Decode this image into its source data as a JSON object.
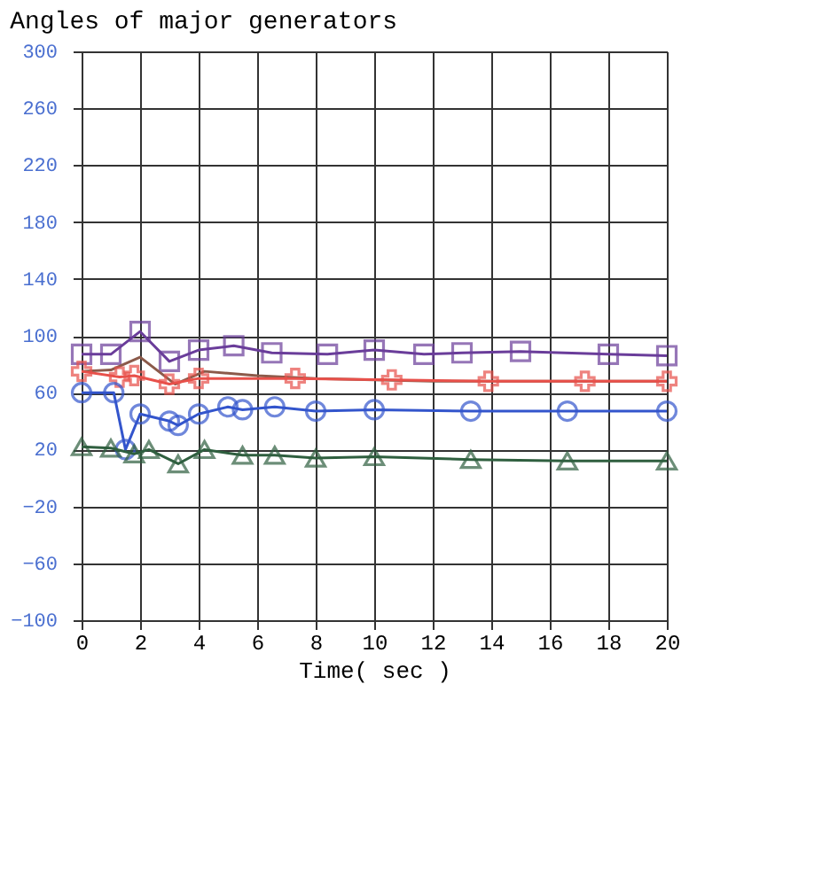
{
  "chart_data": {
    "type": "line",
    "title": "Angles of major generators",
    "xlabel": "Time( sec )",
    "xlim": [
      0,
      20
    ],
    "xticks": [
      0,
      2,
      4,
      6,
      8,
      10,
      12,
      14,
      16,
      18,
      20
    ],
    "ylim": [
      -100,
      300
    ],
    "yticks": [
      -100,
      -60,
      -20,
      20,
      60,
      100,
      140,
      180,
      220,
      260,
      300
    ],
    "grid": true,
    "line_style": "solid",
    "series": [
      {
        "color": "#6a3d9a",
        "marker": "square",
        "x": [
          0,
          1,
          2,
          3,
          4,
          5.2,
          6.5,
          8.4,
          10,
          11.7,
          13,
          15,
          18,
          20
        ],
        "values": [
          87,
          87,
          103,
          82,
          90,
          93,
          88,
          87,
          90,
          87,
          88,
          89,
          87,
          86
        ]
      },
      {
        "color": "#8b5a4a",
        "marker": "none",
        "x": [
          0,
          1,
          2,
          3.2,
          4.2,
          6,
          8,
          12,
          16,
          20
        ],
        "values": [
          75,
          76,
          85,
          66,
          75,
          72,
          70,
          68,
          68,
          68
        ]
      },
      {
        "color": "#e8504a",
        "marker": "cross",
        "x": [
          0,
          1.3,
          1.8,
          3,
          4,
          7.3,
          10.6,
          13.9,
          17.2,
          20
        ],
        "values": [
          75,
          71,
          72,
          66,
          70,
          70,
          69,
          68,
          68,
          68
        ]
      },
      {
        "color": "#3355cc",
        "marker": "circle",
        "x": [
          0,
          1.1,
          1.5,
          2,
          3,
          3.3,
          4,
          5,
          5.5,
          6.6,
          8,
          10,
          13.3,
          16.6,
          20
        ],
        "values": [
          60,
          60,
          20,
          45,
          40,
          37,
          45,
          50,
          48,
          50,
          47,
          48,
          47,
          47,
          47
        ]
      },
      {
        "color": "#2f5f3f",
        "marker": "triangle",
        "x": [
          0,
          1,
          1.8,
          2.3,
          3.3,
          4.2,
          5.5,
          6.6,
          8,
          10,
          13.3,
          16.6,
          20
        ],
        "values": [
          22,
          21,
          17,
          20,
          10,
          20,
          16,
          16,
          14,
          15,
          13,
          12,
          12
        ]
      }
    ]
  }
}
